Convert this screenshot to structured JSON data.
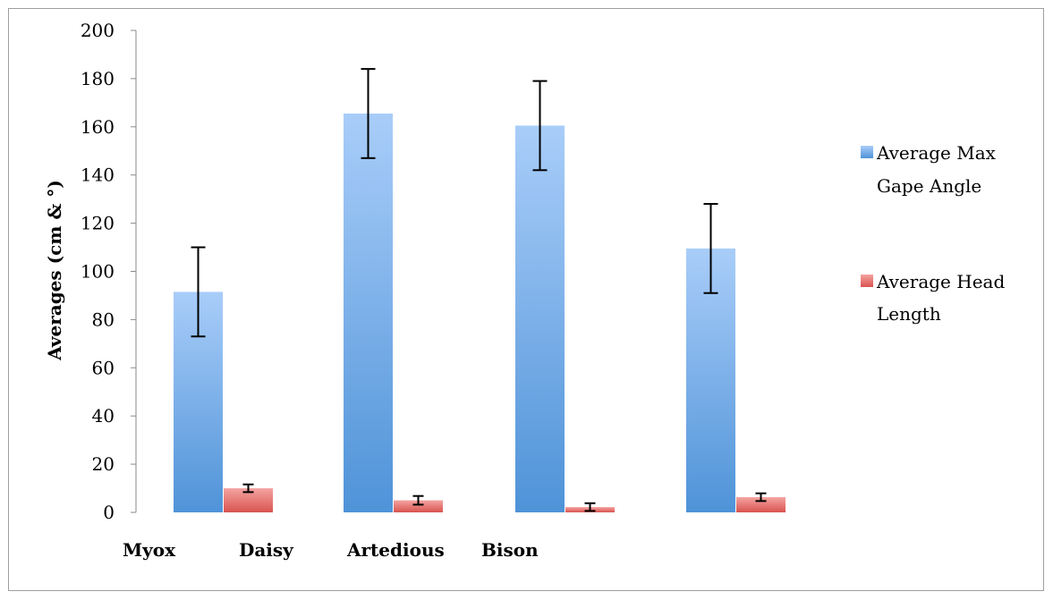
{
  "chart_data": {
    "type": "bar",
    "ylabel": "Averages (cm & °)",
    "xlabel": "",
    "ylim": [
      0,
      200
    ],
    "yticks": [
      0,
      20,
      40,
      60,
      80,
      100,
      120,
      140,
      160,
      180,
      200
    ],
    "grid": false,
    "legend_position": "right",
    "categories": [
      "",
      "",
      "",
      ""
    ],
    "category_labels": [
      "Myox",
      "Daisy",
      "Artedious",
      "Bison"
    ],
    "series": [
      {
        "name": "Average Max Gape Angle",
        "legend_lines": [
          "Average Max",
          "Gape Angle"
        ],
        "color": "#5b9bd5",
        "values": [
          91.5,
          165.5,
          160.5,
          109.5
        ],
        "error": [
          18.5,
          18.5,
          18.5,
          18.5
        ]
      },
      {
        "name": "Average Head Length",
        "legend_lines": [
          "Average Head",
          "Length"
        ],
        "color": "#e15a55",
        "values": [
          10,
          5,
          2.2,
          6.3
        ],
        "error": [
          1.6,
          1.8,
          1.6,
          1.6
        ]
      }
    ]
  }
}
